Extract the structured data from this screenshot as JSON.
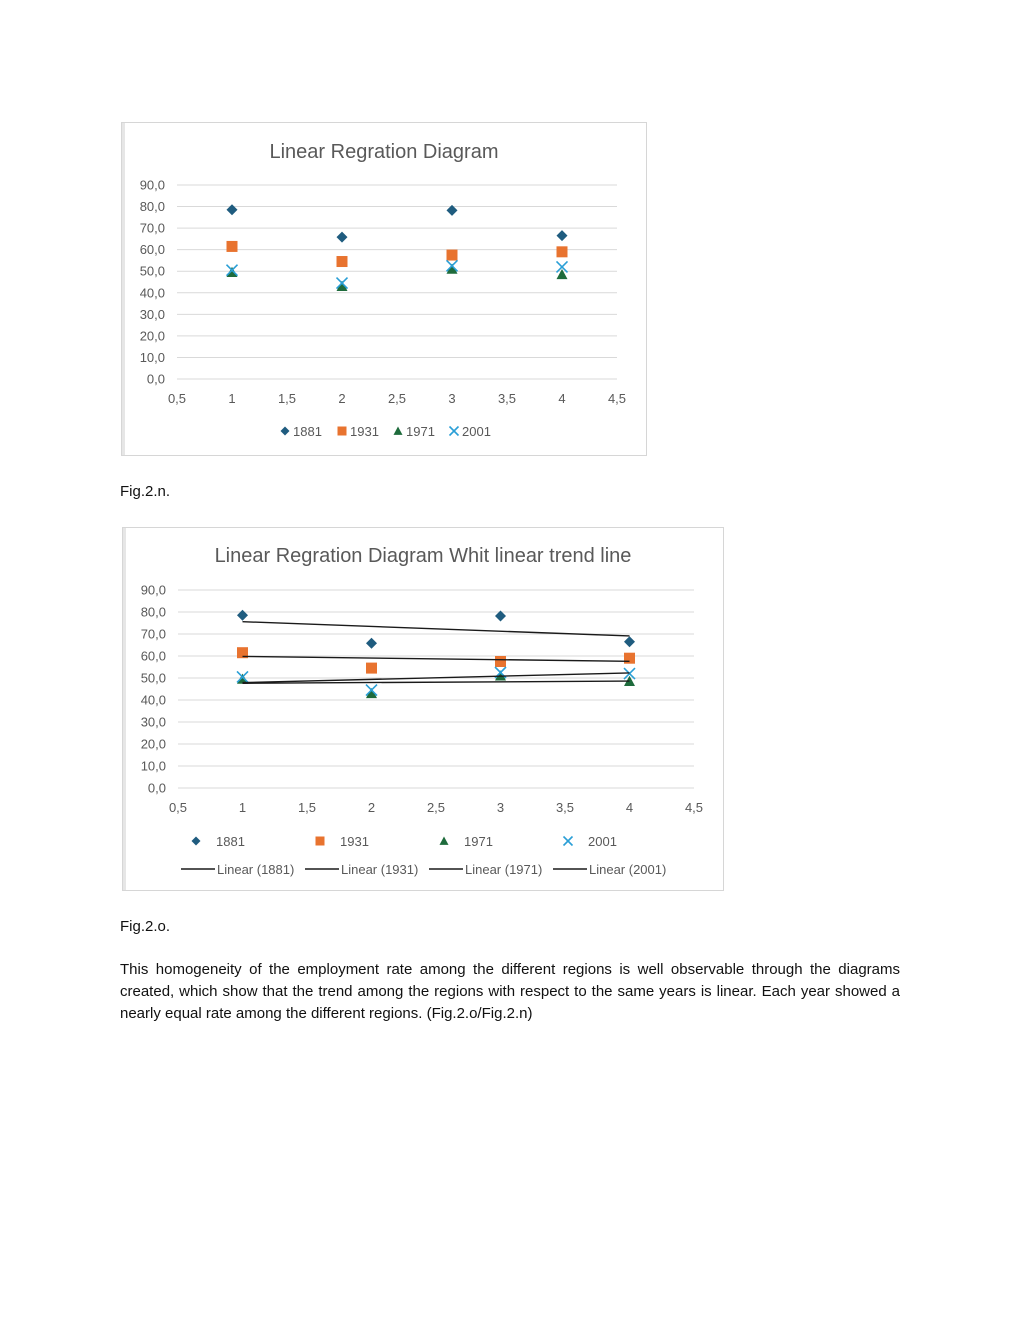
{
  "colors": {
    "s1881": "#1f5c7f",
    "s1931": "#e8732f",
    "s1971": "#1e6b3c",
    "s2001": "#2a9fd6",
    "trend": "#1a1a1a",
    "grid": "#d9d9d9",
    "axis_text": "#595959",
    "title_text": "#595959"
  },
  "chart_data": [
    {
      "type": "scatter",
      "title": "Linear Regration Diagram",
      "xlabel": "",
      "ylabel": "",
      "xlim": [
        0.5,
        4.5
      ],
      "ylim": [
        0,
        90
      ],
      "x_ticks": [
        "0,5",
        "1",
        "1,5",
        "2",
        "2,5",
        "3",
        "3,5",
        "4",
        "4,5"
      ],
      "y_ticks": [
        "0,0",
        "10,0",
        "20,0",
        "30,0",
        "40,0",
        "50,0",
        "60,0",
        "70,0",
        "80,0",
        "90,0"
      ],
      "grid": true,
      "legend_position": "bottom",
      "series": [
        {
          "name": "1881",
          "marker": "diamond",
          "x": [
            1,
            2,
            3,
            4
          ],
          "y": [
            78.5,
            65.8,
            78.2,
            66.5
          ]
        },
        {
          "name": "1931",
          "marker": "square",
          "x": [
            1,
            2,
            3,
            4
          ],
          "y": [
            61.5,
            54.5,
            57.5,
            59.0
          ]
        },
        {
          "name": "1971",
          "marker": "triangle",
          "x": [
            1,
            2,
            3,
            4
          ],
          "y": [
            49.5,
            43.0,
            51.0,
            48.5
          ]
        },
        {
          "name": "2001",
          "marker": "x",
          "x": [
            1,
            2,
            3,
            4
          ],
          "y": [
            50.5,
            44.5,
            52.5,
            52.0
          ]
        }
      ]
    },
    {
      "type": "scatter",
      "title": "Linear Regration Diagram Whit linear trend line",
      "xlabel": "",
      "ylabel": "",
      "xlim": [
        0.5,
        4.5
      ],
      "ylim": [
        0,
        90
      ],
      "x_ticks": [
        "0,5",
        "1",
        "1,5",
        "2",
        "2,5",
        "3",
        "3,5",
        "4",
        "4,5"
      ],
      "y_ticks": [
        "0,0",
        "10,0",
        "20,0",
        "30,0",
        "40,0",
        "50,0",
        "60,0",
        "70,0",
        "80,0",
        "90,0"
      ],
      "grid": true,
      "legend_position": "bottom",
      "series": [
        {
          "name": "1881",
          "marker": "diamond",
          "x": [
            1,
            2,
            3,
            4
          ],
          "y": [
            78.5,
            65.8,
            78.2,
            66.5
          ]
        },
        {
          "name": "1931",
          "marker": "square",
          "x": [
            1,
            2,
            3,
            4
          ],
          "y": [
            61.5,
            54.5,
            57.5,
            59.0
          ]
        },
        {
          "name": "1971",
          "marker": "triangle",
          "x": [
            1,
            2,
            3,
            4
          ],
          "y": [
            49.5,
            43.0,
            51.0,
            48.5
          ]
        },
        {
          "name": "2001",
          "marker": "x",
          "x": [
            1,
            2,
            3,
            4
          ],
          "y": [
            50.5,
            44.5,
            52.5,
            52.0
          ]
        }
      ],
      "trendlines": [
        {
          "name": "Linear (1881)",
          "x": [
            1,
            4
          ],
          "y": [
            75.6,
            69.1
          ]
        },
        {
          "name": "Linear (1931)",
          "x": [
            1,
            4
          ],
          "y": [
            59.8,
            57.6
          ]
        },
        {
          "name": "Linear (1971)",
          "x": [
            1,
            4
          ],
          "y": [
            47.6,
            48.6
          ]
        },
        {
          "name": "Linear (2001)",
          "x": [
            1,
            4
          ],
          "y": [
            47.9,
            52.3
          ]
        }
      ]
    }
  ],
  "captions": {
    "fig_n": "Fig.2.n.",
    "fig_o": "Fig.2.o."
  },
  "body_text": "This homogeneity of the employment rate among the different regions is well observable through the diagrams created, which show that the trend among the regions with respect to the same years is linear. Each year showed a nearly equal rate among the different regions. (Fig.2.o/Fig.2.n)"
}
